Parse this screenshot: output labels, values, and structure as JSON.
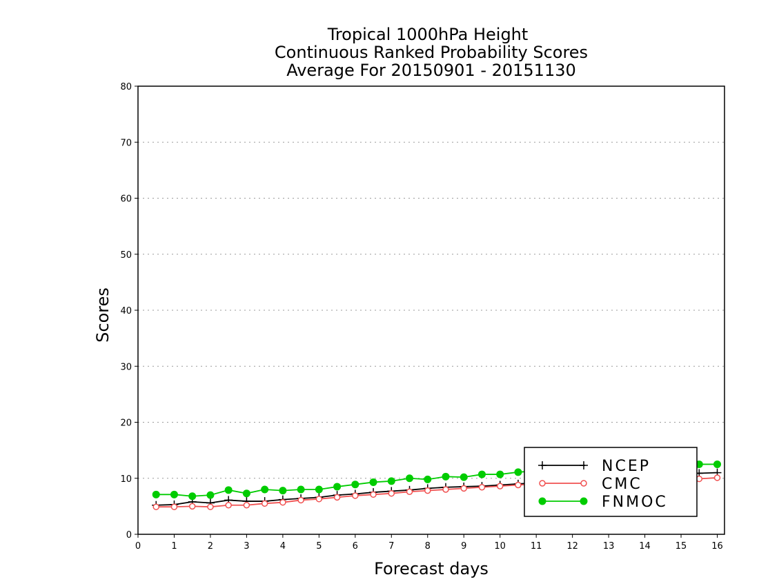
{
  "chart_data": {
    "type": "line",
    "title": [
      "Tropical 1000hPa Height",
      "Continuous Ranked Probability Scores",
      "Average For 20150901 - 20151130"
    ],
    "xlabel": "Forecast days",
    "ylabel": "Scores",
    "xlim": [
      0,
      16.2
    ],
    "ylim": [
      0,
      80
    ],
    "xticks": [
      "0",
      "1",
      "2",
      "3",
      "4",
      "5",
      "6",
      "7",
      "8",
      "9",
      "10",
      "11",
      "12",
      "13",
      "14",
      "15",
      "16"
    ],
    "yticks": [
      "0",
      "10",
      "20",
      "30",
      "40",
      "50",
      "60",
      "70",
      "80"
    ],
    "grid": "horizontal dotted",
    "legend_position": "bottom-right",
    "x": [
      0.5,
      1,
      1.5,
      2,
      2.5,
      3,
      3.5,
      4,
      4.5,
      5,
      5.5,
      6,
      6.5,
      7,
      7.5,
      8,
      8.5,
      9,
      9.5,
      10,
      10.5,
      11,
      11.5,
      12,
      12.5,
      13,
      13.5,
      14,
      14.5,
      15,
      15.5,
      16
    ],
    "series": [
      {
        "name": "NCEP",
        "color": "#000000",
        "marker": "plus",
        "values": [
          5.2,
          5.3,
          5.8,
          5.6,
          6.1,
          5.9,
          5.9,
          6.2,
          6.4,
          6.6,
          7.0,
          7.2,
          7.5,
          7.7,
          7.9,
          8.2,
          8.4,
          8.5,
          8.6,
          8.8,
          9.0,
          9.2,
          9.4,
          9.6,
          9.8,
          10.0,
          10.2,
          10.4,
          10.6,
          10.8,
          10.9,
          11.0
        ]
      },
      {
        "name": "CMC",
        "color": "#f05050",
        "marker": "open-circle",
        "values": [
          4.9,
          4.9,
          5.0,
          4.9,
          5.2,
          5.2,
          5.5,
          5.7,
          6.1,
          6.3,
          6.6,
          6.9,
          7.1,
          7.3,
          7.6,
          7.8,
          8.0,
          8.2,
          8.4,
          8.6,
          8.8,
          9.0,
          9.1,
          9.2,
          9.3,
          9.4,
          9.5,
          9.6,
          9.7,
          9.8,
          9.9,
          10.1
        ]
      },
      {
        "name": "FNMOC",
        "color": "#00cc00",
        "marker": "filled-circle",
        "values": [
          7.1,
          7.1,
          6.8,
          7.0,
          7.9,
          7.3,
          8.0,
          7.8,
          8.0,
          8.0,
          8.5,
          8.9,
          9.3,
          9.5,
          10.0,
          9.8,
          10.3,
          10.2,
          10.7,
          10.7,
          11.1,
          11.3,
          11.5,
          11.6,
          11.7,
          11.9,
          12.0,
          12.1,
          12.2,
          12.3,
          12.5,
          12.5
        ]
      }
    ]
  }
}
